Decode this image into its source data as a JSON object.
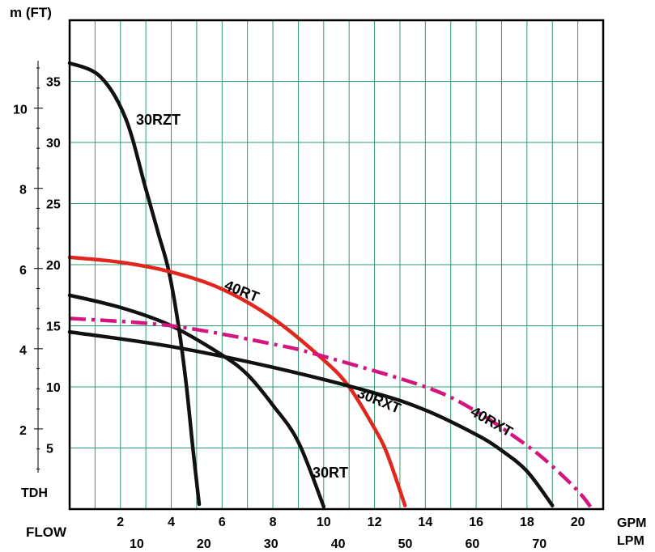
{
  "chart_data": {
    "type": "line",
    "axis_labels": {
      "y_top": "m (FT)",
      "y_bottom": "TDH",
      "x_left": "FLOW",
      "x_gpm": "GPM",
      "x_lpm": "LPM"
    },
    "x_gpm": {
      "range": [
        0,
        21
      ],
      "ticks": [
        2,
        4,
        6,
        8,
        10,
        12,
        14,
        16,
        18,
        20
      ]
    },
    "x_lpm": {
      "ticks": [
        10,
        20,
        30,
        40,
        50,
        60,
        70
      ]
    },
    "y_ft": {
      "range": [
        0,
        40
      ],
      "ticks": [
        5,
        10,
        15,
        20,
        25,
        30,
        35
      ]
    },
    "y_m": {
      "ticks": [
        2,
        4,
        6,
        8,
        10
      ]
    },
    "grid": true,
    "colors": {
      "grid": "#2e9b6e",
      "black": "#111111",
      "red": "#e0261d",
      "magenta": "#d3157e"
    },
    "series": [
      {
        "name": "30RZT",
        "color": "black",
        "dash": false,
        "points": [
          [
            0,
            36.5
          ],
          [
            1.2,
            35.4
          ],
          [
            2.2,
            32.0
          ],
          [
            3.0,
            26.2
          ],
          [
            3.5,
            22.5
          ],
          [
            3.9,
            19.5
          ],
          [
            4.3,
            14.8
          ],
          [
            4.6,
            10.0
          ],
          [
            4.85,
            5.0
          ],
          [
            5.1,
            0.4
          ]
        ]
      },
      {
        "name": "40RT",
        "color": "red",
        "dash": false,
        "points": [
          [
            0,
            20.6
          ],
          [
            2.0,
            20.2
          ],
          [
            4.0,
            19.4
          ],
          [
            6.0,
            18.0
          ],
          [
            8.0,
            15.6
          ],
          [
            10.0,
            12.2
          ],
          [
            11.0,
            10.0
          ],
          [
            12.0,
            6.6
          ],
          [
            12.5,
            4.5
          ],
          [
            13.2,
            0.3
          ]
        ]
      },
      {
        "name": "30RT",
        "color": "black",
        "dash": false,
        "points": [
          [
            0,
            17.5
          ],
          [
            2.0,
            16.5
          ],
          [
            4.0,
            15.0
          ],
          [
            6.0,
            12.6
          ],
          [
            7.0,
            11.0
          ],
          [
            8.0,
            8.5
          ],
          [
            9.0,
            5.5
          ],
          [
            10.0,
            0.2
          ]
        ]
      },
      {
        "name": "30RXT",
        "color": "black",
        "dash": false,
        "points": [
          [
            0,
            14.5
          ],
          [
            4.0,
            13.3
          ],
          [
            8.0,
            11.6
          ],
          [
            12.0,
            9.5
          ],
          [
            14.0,
            8.1
          ],
          [
            16.0,
            6.1
          ],
          [
            17.0,
            4.8
          ],
          [
            18.0,
            3.1
          ],
          [
            19.0,
            0.3
          ]
        ]
      },
      {
        "name": "40RXT",
        "color": "magenta",
        "dash": true,
        "points": [
          [
            0,
            15.6
          ],
          [
            4.0,
            15.0
          ],
          [
            8.0,
            13.5
          ],
          [
            10.0,
            12.5
          ],
          [
            14.0,
            10.0
          ],
          [
            16.0,
            8.0
          ],
          [
            18.0,
            5.2
          ],
          [
            19.0,
            3.5
          ],
          [
            20.0,
            1.5
          ],
          [
            20.5,
            0.2
          ]
        ]
      }
    ]
  }
}
